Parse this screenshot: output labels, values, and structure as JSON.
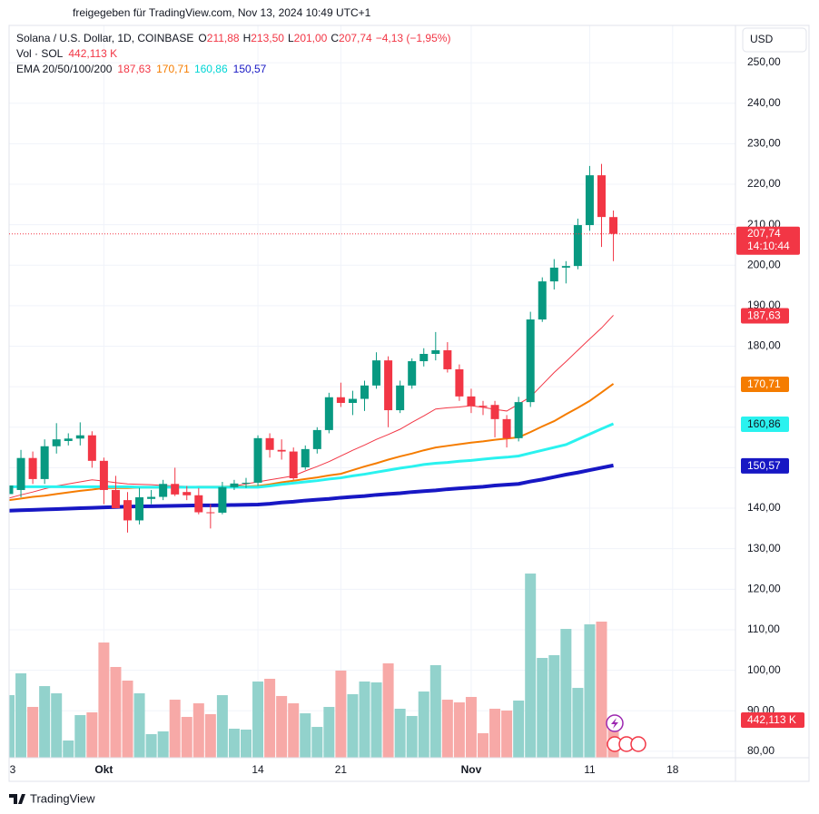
{
  "chart_data": {
    "type": "candlestick",
    "share_note": "freigegeben für TradingView.com, Nov 13, 2024 10:49 UTC+1",
    "title": "Solana / U.S. Dollar, 1D, COINBASE",
    "ohlc_header": [
      {
        "key": "O",
        "label": "211,88"
      },
      {
        "key": "H",
        "label": "213,50"
      },
      {
        "key": "L",
        "label": "201,00"
      },
      {
        "key": "C",
        "label": "207,74"
      }
    ],
    "change_label": "−4,13 (−1,95%)",
    "currency": "USD",
    "brand": "TradingView",
    "up_color": "#089981",
    "down_color": "#f23645",
    "open": [
      143.5,
      144.5,
      152.4,
      147.2,
      155.3,
      156.6,
      157.2,
      158.0,
      151.7,
      144.5,
      142.0,
      137.0,
      142.3,
      142.8,
      146.0,
      144.0,
      143.2,
      139.0,
      138.9,
      145.2,
      146.1,
      146.3,
      157.3,
      154.4,
      154.0,
      150.1,
      154.6,
      159.3,
      167.4,
      166.0,
      167.0,
      170.3,
      176.5,
      164.2,
      170.3,
      176.3,
      178.1,
      179.0,
      174.3,
      167.6,
      165.3,
      165.5,
      162.0,
      157.3,
      166.2,
      186.6,
      196.0,
      199.4,
      199.8,
      209.9,
      222.2,
      211.88
    ],
    "high": [
      147.8,
      154.4,
      154.0,
      157.0,
      161.0,
      158.5,
      161.2,
      159.0,
      152.5,
      148.0,
      144.0,
      145.0,
      144.5,
      147.0,
      150.0,
      145.5,
      145.0,
      141.0,
      146.5,
      147.0,
      147.5,
      158.0,
      158.5,
      157.0,
      155.0,
      155.5,
      160.0,
      168.5,
      171.0,
      169.0,
      171.5,
      178.5,
      177.5,
      171.5,
      177.0,
      179.5,
      183.5,
      181.0,
      175.5,
      169.5,
      166.5,
      166.5,
      163.0,
      167.5,
      188.5,
      197.0,
      201.5,
      201.0,
      211.5,
      224.5,
      225.0,
      213.5
    ],
    "low": [
      142.0,
      142.7,
      146.0,
      146.0,
      153.5,
      155.5,
      155.5,
      150.0,
      141.0,
      140.0,
      134.0,
      136.0,
      141.0,
      142.0,
      143.0,
      142.0,
      138.5,
      135.0,
      138.5,
      144.5,
      145.0,
      145.5,
      152.5,
      152.0,
      147.0,
      149.5,
      153.5,
      158.5,
      165.0,
      163.0,
      164.0,
      169.5,
      160.0,
      163.5,
      169.5,
      175.0,
      176.5,
      173.5,
      166.5,
      163.5,
      163.0,
      157.5,
      155.0,
      156.5,
      165.0,
      186.0,
      194.0,
      195.5,
      199.0,
      208.5,
      204.5,
      201.0
    ],
    "close": [
      145.6,
      152.4,
      147.2,
      155.3,
      157.0,
      157.2,
      158.0,
      151.7,
      144.5,
      140.0,
      137.0,
      142.7,
      142.8,
      146.0,
      143.4,
      143.2,
      139.0,
      138.9,
      145.2,
      146.1,
      146.3,
      157.3,
      154.4,
      154.0,
      147.4,
      154.6,
      159.3,
      167.4,
      166.0,
      167.0,
      170.3,
      176.5,
      164.2,
      170.3,
      176.3,
      178.1,
      179.0,
      174.3,
      167.6,
      165.3,
      165.0,
      162.0,
      157.3,
      166.2,
      186.6,
      196.0,
      199.4,
      199.8,
      209.9,
      222.2,
      211.9,
      207.74
    ],
    "last_price_label": "207,74",
    "countdown": "14:10:44",
    "volume": {
      "name": "Vol · SOL",
      "up_color": "#92d2cc",
      "down_color": "#f7a9a7",
      "ylim": [
        0,
        4500
      ],
      "values": [
        727,
        980,
        590,
        832,
        748,
        200,
        495,
        527,
        1338,
        1054,
        896,
        748,
        274,
        306,
        674,
        474,
        632,
        506,
        727,
        337,
        327,
        885,
        917,
        717,
        632,
        516,
        358,
        590,
        1012,
        738,
        885,
        875,
        1096,
        569,
        485,
        769,
        1075,
        674,
        643,
        706,
        285,
        569,
        548,
        664,
        2139,
        1159,
        1191,
        1496,
        811,
        1549,
        1581,
        442.113
      ],
      "last_label": "442,113 K"
    },
    "ema": {
      "name": "EMA 20/50/100/200",
      "series": [
        {
          "color": "#f23645",
          "last_label": "187,63",
          "values": [
            142.5,
            143.3,
            144.0,
            144.8,
            145.5,
            146.0,
            146.5,
            147.0,
            146.7,
            146.3,
            146.0,
            145.9,
            145.8,
            145.6,
            145.5,
            145.4,
            145.3,
            145.1,
            145.0,
            145.5,
            146.0,
            146.5,
            147.0,
            147.5,
            148.0,
            149.2,
            150.3,
            151.5,
            152.9,
            154.3,
            155.6,
            157.0,
            158.2,
            159.5,
            161.2,
            162.8,
            164.5,
            164.8,
            165.0,
            165.3,
            164.9,
            164.4,
            164.0,
            165.7,
            167.5,
            170.5,
            173.5,
            176.2,
            179.0,
            181.8,
            184.5,
            187.63
          ]
        },
        {
          "color": "#f57c00",
          "last_label": "170,71",
          "values": [
            142.0,
            142.4,
            142.8,
            143.1,
            143.5,
            143.9,
            144.3,
            144.6,
            145.0,
            145.0,
            145.0,
            145.1,
            145.1,
            145.1,
            145.2,
            145.2,
            145.3,
            145.3,
            145.3,
            145.4,
            145.4,
            145.5,
            145.9,
            146.4,
            146.8,
            147.2,
            147.6,
            148.1,
            148.5,
            149.4,
            150.3,
            151.1,
            152.0,
            152.8,
            153.5,
            154.3,
            155.0,
            155.4,
            155.8,
            156.2,
            156.5,
            156.9,
            157.2,
            157.5,
            158.8,
            160.2,
            161.5,
            163.2,
            164.8,
            166.5,
            168.6,
            170.71
          ]
        },
        {
          "color": "#2af2ef",
          "last_label": "160,86",
          "values": [
            145.3,
            145.3,
            145.3,
            145.3,
            145.3,
            145.3,
            145.3,
            145.3,
            145.3,
            145.3,
            145.3,
            145.2,
            145.2,
            145.2,
            145.2,
            145.2,
            145.2,
            145.2,
            145.2,
            145.2,
            145.2,
            145.2,
            145.5,
            145.9,
            146.2,
            146.5,
            146.8,
            147.2,
            147.5,
            148.0,
            148.4,
            148.9,
            149.4,
            149.9,
            150.3,
            150.8,
            151.1,
            151.3,
            151.6,
            151.8,
            152.1,
            152.4,
            152.6,
            152.9,
            153.6,
            154.3,
            155.0,
            155.7,
            157.0,
            158.3,
            159.6,
            160.86
          ]
        },
        {
          "color": "#1717c4",
          "last_label": "150,57",
          "values": [
            139.4,
            139.5,
            139.6,
            139.7,
            139.8,
            139.9,
            140.0,
            140.1,
            140.2,
            140.3,
            140.4,
            140.45,
            140.5,
            140.55,
            140.6,
            140.65,
            140.7,
            140.7,
            140.75,
            140.8,
            140.85,
            140.9,
            141.1,
            141.4,
            141.6,
            141.9,
            142.1,
            142.3,
            142.6,
            142.8,
            143.0,
            143.3,
            143.5,
            143.7,
            144.0,
            144.2,
            144.4,
            144.7,
            144.9,
            145.1,
            145.3,
            145.6,
            145.8,
            146.0,
            146.6,
            147.1,
            147.7,
            148.3,
            148.8,
            149.4,
            150.0,
            150.57
          ]
        }
      ]
    },
    "ylim": [
      78.4,
      259.2
    ],
    "yticks": [
      {
        "value": 80,
        "label": "80,00"
      },
      {
        "value": 90,
        "label": "90,00"
      },
      {
        "value": 100,
        "label": "100,00"
      },
      {
        "value": 110,
        "label": "110,00"
      },
      {
        "value": 120,
        "label": "120,00"
      },
      {
        "value": 130,
        "label": "130,00"
      },
      {
        "value": 140,
        "label": "140,00"
      },
      {
        "value": 150,
        "label": "150,00"
      },
      {
        "value": 160,
        "label": "160,00"
      },
      {
        "value": 170,
        "label": "170,00"
      },
      {
        "value": 180,
        "label": "180,00"
      },
      {
        "value": 190,
        "label": "190,00"
      },
      {
        "value": 200,
        "label": "200,00"
      },
      {
        "value": 210,
        "label": "210,00"
      },
      {
        "value": 220,
        "label": "220,00"
      },
      {
        "value": 230,
        "label": "230,00"
      },
      {
        "value": 240,
        "label": "240,00"
      },
      {
        "value": 250,
        "label": "250,00"
      }
    ],
    "xticks": [
      {
        "value": 0,
        "label": "3"
      },
      {
        "value": 8,
        "label": "Okt"
      },
      {
        "value": 21,
        "label": "14"
      },
      {
        "value": 28,
        "label": "21"
      },
      {
        "value": 39,
        "label": "Nov"
      },
      {
        "value": 49,
        "label": "11"
      },
      {
        "value": 56,
        "label": "18"
      }
    ],
    "grid": true
  }
}
